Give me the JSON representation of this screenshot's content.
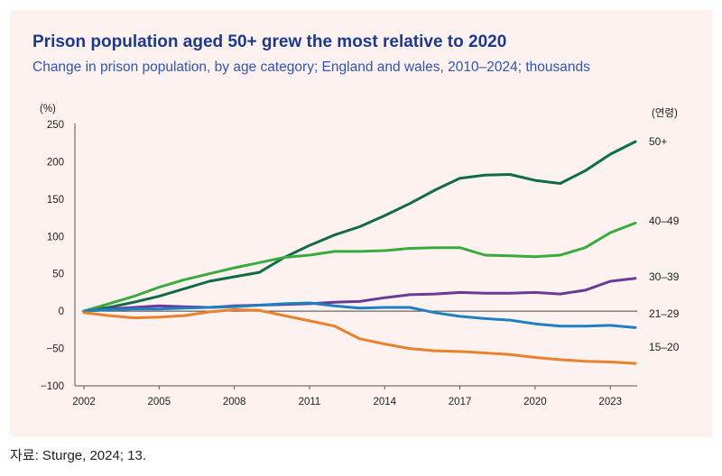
{
  "title": "Prison population aged 50+ grew the most relative to 2020",
  "subtitle": "Change in prison population, by age category; England and wales, 2010–2024; thousands",
  "source": "자료: Sturge, 2024; 13.",
  "chart_data": {
    "type": "line",
    "y_unit_label": "(%)",
    "legend_title": "(연령)",
    "xlim": [
      2002,
      2024
    ],
    "ylim": [
      -100,
      250
    ],
    "x_ticks": [
      "2002",
      "2005",
      "2008",
      "2011",
      "2014",
      "2017",
      "2020",
      "2023"
    ],
    "y_ticks": [
      "250",
      "200",
      "150",
      "100",
      "50",
      "0",
      "−50",
      "−100"
    ],
    "x": [
      2002,
      2003,
      2004,
      2005,
      2006,
      2007,
      2008,
      2009,
      2010,
      2011,
      2012,
      2013,
      2014,
      2015,
      2016,
      2017,
      2018,
      2019,
      2020,
      2021,
      2022,
      2023,
      2024
    ],
    "series": [
      {
        "name": "50+",
        "color": "#0f6b4a",
        "values": [
          0,
          5,
          12,
          20,
          30,
          40,
          46,
          52,
          72,
          88,
          102,
          113,
          128,
          144,
          162,
          178,
          182,
          183,
          175,
          171,
          188,
          210,
          227
        ]
      },
      {
        "name": "40–49",
        "color": "#3aaa3f",
        "values": [
          0,
          10,
          20,
          32,
          42,
          50,
          58,
          65,
          72,
          75,
          80,
          80,
          81,
          84,
          85,
          85,
          75,
          74,
          73,
          75,
          85,
          105,
          118
        ]
      },
      {
        "name": "30–39",
        "color": "#6a3b96",
        "values": [
          0,
          3,
          5,
          7,
          6,
          5,
          7,
          8,
          9,
          10,
          12,
          13,
          18,
          22,
          23,
          25,
          24,
          24,
          25,
          23,
          28,
          40,
          44
        ]
      },
      {
        "name": "21–29",
        "color": "#1f7fc1",
        "values": [
          0,
          2,
          3,
          3,
          4,
          5,
          6,
          8,
          10,
          11,
          7,
          4,
          5,
          5,
          -2,
          -7,
          -10,
          -12,
          -17,
          -20,
          -20,
          -19,
          -22
        ]
      },
      {
        "name": "15–20",
        "color": "#e9812d",
        "values": [
          -2,
          -6,
          -9,
          -8,
          -6,
          -1,
          2,
          1,
          -6,
          -13,
          -20,
          -37,
          -44,
          -50,
          -53,
          -54,
          -56,
          -58,
          -62,
          -65,
          -67,
          -68,
          -70
        ]
      }
    ],
    "grid": false,
    "legend_placement": "right, end-of-line labels"
  }
}
